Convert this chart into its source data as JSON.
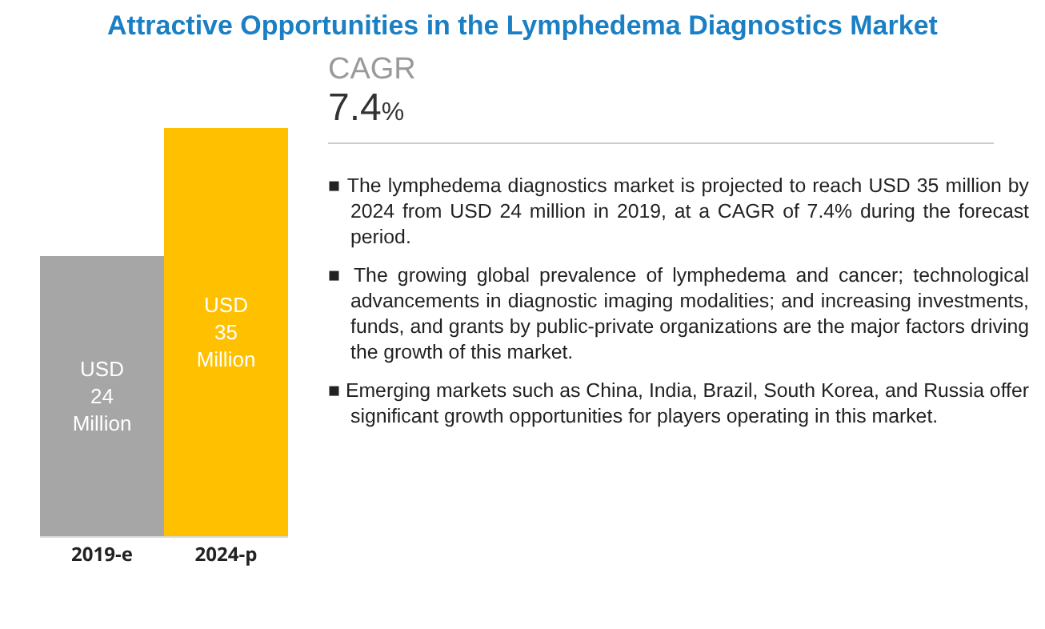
{
  "chart_data": [
    {
      "type": "bar",
      "title": "Attractive Opportunities in the Lymphedema Diagnostics Market",
      "categories": [
        "2019-e",
        "2024-p"
      ],
      "values": [
        24,
        35
      ],
      "colors": [
        "#a6a6a6",
        "#ffc000"
      ],
      "value_labels": [
        "USD 24 Million",
        "USD 35 Million"
      ],
      "legend": false
    },
    {
      "type": "other",
      "annotations": [
        "CAGR",
        "7.4%",
        "■ The lymphedema diagnostics market is projected to reach USD 35 million by 2024 from USD 24 million in 2019, at a CAGR of 7.4% during the forecast period.",
        "■ The growing global prevalence of lymphedema and cancer; technological advancements in diagnostic imaging modalities; and increasing investments, funds, and grants by public-private organizations are the major factors driving the growth of this market.",
        "■ Emerging markets such as China, India, Brazil, South Korea, and Russia offer significant growth opportunities for players operating in this market."
      ]
    }
  ]
}
